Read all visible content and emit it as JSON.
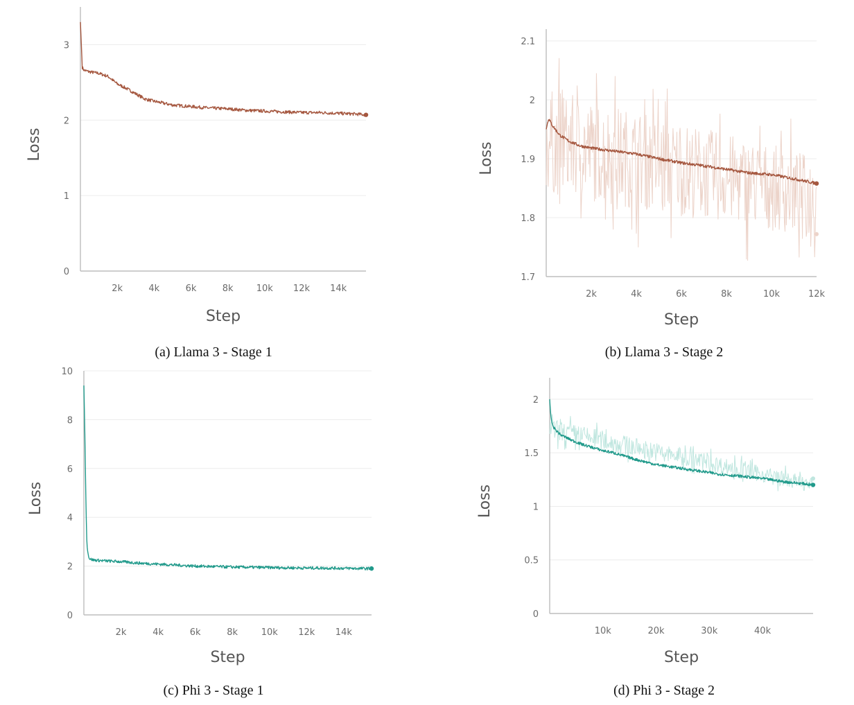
{
  "figure": {
    "captions": [
      "(a) Llama 3 - Stage 1",
      "(b) Llama 3 - Stage 2",
      "(c) Phi 3 - Stage 1",
      "(d) Phi 3 - Stage 2"
    ]
  },
  "colors": {
    "llama_line": "#a5573f",
    "llama_raw": "#ecd3c9",
    "phi_line": "#219a8b",
    "phi_raw": "#bfe6df",
    "grid": "#ececec",
    "axis": "#bdbdbd"
  },
  "chart_data": [
    {
      "type": "line",
      "title": "",
      "caption": "(a) Llama 3 - Stage 1",
      "xlabel": "Step",
      "ylabel": "Loss",
      "xlim": [
        0,
        15500
      ],
      "ylim": [
        0,
        3.5
      ],
      "xticks": [
        2000,
        4000,
        6000,
        8000,
        10000,
        12000,
        14000
      ],
      "xtick_labels": [
        "2k",
        "4k",
        "6k",
        "8k",
        "10k",
        "12k",
        "14k"
      ],
      "yticks": [
        0,
        1,
        2,
        3
      ],
      "ytick_labels": [
        "0",
        "1",
        "2",
        "3"
      ],
      "grid": true,
      "series": [
        {
          "style": "smoothed",
          "end_marker": true,
          "x": [
            0,
            100,
            200,
            500,
            1000,
            1500,
            2000,
            2500,
            3000,
            3500,
            4000,
            5000,
            6000,
            7000,
            8000,
            9000,
            10000,
            11000,
            12000,
            13000,
            14000,
            15000,
            15500
          ],
          "y": [
            3.3,
            2.7,
            2.66,
            2.64,
            2.62,
            2.58,
            2.48,
            2.42,
            2.35,
            2.28,
            2.25,
            2.2,
            2.18,
            2.16,
            2.15,
            2.13,
            2.12,
            2.11,
            2.1,
            2.1,
            2.09,
            2.08,
            2.07
          ]
        }
      ]
    },
    {
      "type": "line",
      "title": "",
      "caption": "(b) Llama 3 - Stage 2",
      "xlabel": "Step",
      "ylabel": "Loss",
      "xlim": [
        0,
        12000
      ],
      "ylim": [
        1.7,
        2.12
      ],
      "xticks": [
        2000,
        4000,
        6000,
        8000,
        10000,
        12000
      ],
      "xtick_labels": [
        "2k",
        "4k",
        "6k",
        "8k",
        "10k",
        "12k"
      ],
      "yticks": [
        1.7,
        1.8,
        1.9,
        2,
        2.1
      ],
      "ytick_labels": [
        "1.7",
        "1.8",
        "1.9",
        "2",
        "2.1"
      ],
      "grid": true,
      "series": [
        {
          "style": "smoothed",
          "end_marker": true,
          "x": [
            0,
            100,
            300,
            600,
            1000,
            1500,
            2000,
            3000,
            4000,
            5000,
            6000,
            7000,
            8000,
            9000,
            10000,
            11000,
            12000
          ],
          "y": [
            1.95,
            1.968,
            1.955,
            1.94,
            1.93,
            1.922,
            1.918,
            1.913,
            1.908,
            1.9,
            1.893,
            1.888,
            1.882,
            1.876,
            1.873,
            1.866,
            1.858
          ]
        },
        {
          "style": "raw",
          "end_marker": true,
          "x": [
            0,
            12000
          ],
          "y_center": [
            1.93,
            1.835
          ],
          "y_spread": [
            0.09,
            0.07
          ],
          "y_end": 1.772
        }
      ]
    },
    {
      "type": "line",
      "title": "",
      "caption": "(c) Phi 3 - Stage 1",
      "xlabel": "Step",
      "ylabel": "Loss",
      "xlim": [
        0,
        15500
      ],
      "ylim": [
        0,
        10
      ],
      "xticks": [
        2000,
        4000,
        6000,
        8000,
        10000,
        12000,
        14000
      ],
      "xtick_labels": [
        "2k",
        "4k",
        "6k",
        "8k",
        "10k",
        "12k",
        "14k"
      ],
      "yticks": [
        0,
        2,
        4,
        6,
        8,
        10
      ],
      "ytick_labels": [
        "0",
        "2",
        "4",
        "6",
        "8",
        "10"
      ],
      "grid": true,
      "series": [
        {
          "style": "smoothed",
          "end_marker": true,
          "x": [
            0,
            50,
            100,
            150,
            200,
            300,
            500,
            1000,
            2000,
            3000,
            4000,
            5000,
            6000,
            7000,
            8000,
            9000,
            10000,
            11000,
            12000,
            13000,
            14000,
            15000,
            15500
          ],
          "y": [
            9.4,
            7.5,
            5.0,
            3.2,
            2.6,
            2.3,
            2.25,
            2.22,
            2.18,
            2.12,
            2.08,
            2.04,
            2.0,
            1.98,
            1.96,
            1.95,
            1.94,
            1.93,
            1.92,
            1.92,
            1.91,
            1.9,
            1.9
          ]
        }
      ]
    },
    {
      "type": "line",
      "title": "",
      "caption": "(d) Phi 3 - Stage 2",
      "xlabel": "Step",
      "ylabel": "Loss",
      "xlim": [
        0,
        49500
      ],
      "ylim": [
        0,
        2.2
      ],
      "xticks": [
        10000,
        20000,
        30000,
        40000
      ],
      "xtick_labels": [
        "10k",
        "20k",
        "30k",
        "40k"
      ],
      "yticks": [
        0,
        0.5,
        1,
        1.5,
        2
      ],
      "ytick_labels": [
        "0",
        "0.5",
        "1",
        "1.5",
        "2"
      ],
      "grid": true,
      "series": [
        {
          "style": "smoothed",
          "end_marker": true,
          "x": [
            0,
            200,
            500,
            1000,
            2000,
            4000,
            6000,
            8000,
            10000,
            12000,
            14000,
            16000,
            20000,
            24000,
            28000,
            32000,
            36000,
            40000,
            44000,
            48000,
            49500
          ],
          "y": [
            2.0,
            1.85,
            1.76,
            1.72,
            1.67,
            1.62,
            1.58,
            1.55,
            1.52,
            1.5,
            1.47,
            1.44,
            1.39,
            1.36,
            1.33,
            1.3,
            1.28,
            1.26,
            1.23,
            1.21,
            1.2
          ]
        },
        {
          "style": "raw",
          "end_marker": true,
          "x": [
            0,
            49500
          ],
          "y_center": [
            1.72,
            1.2
          ],
          "y_spread": [
            0.1,
            0.07
          ],
          "y_end": 1.26
        }
      ]
    }
  ]
}
